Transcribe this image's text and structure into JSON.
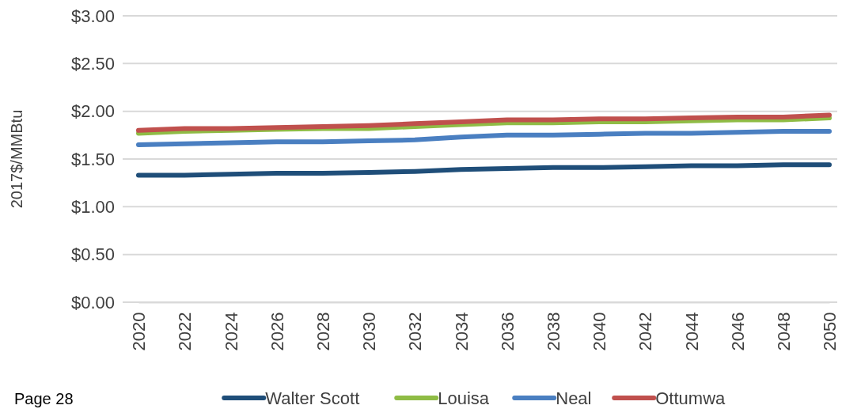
{
  "chart_data": {
    "type": "line",
    "ylabel": "2017$/MMBtu",
    "x": [
      2020,
      2022,
      2024,
      2026,
      2028,
      2030,
      2032,
      2034,
      2036,
      2038,
      2040,
      2042,
      2044,
      2046,
      2048,
      2050
    ],
    "series": [
      {
        "name": "Walter Scott",
        "color": "#1f4e79",
        "values": [
          1.33,
          1.33,
          1.34,
          1.35,
          1.35,
          1.36,
          1.37,
          1.39,
          1.4,
          1.41,
          1.41,
          1.42,
          1.43,
          1.43,
          1.44,
          1.44
        ]
      },
      {
        "name": "Louisa",
        "color": "#8fbc45",
        "values": [
          1.77,
          1.79,
          1.8,
          1.81,
          1.82,
          1.82,
          1.84,
          1.86,
          1.88,
          1.88,
          1.89,
          1.89,
          1.9,
          1.91,
          1.91,
          1.93
        ]
      },
      {
        "name": "Neal",
        "color": "#4a7fc1",
        "values": [
          1.65,
          1.66,
          1.67,
          1.68,
          1.68,
          1.69,
          1.7,
          1.73,
          1.75,
          1.75,
          1.76,
          1.77,
          1.77,
          1.78,
          1.79,
          1.79
        ]
      },
      {
        "name": "Ottumwa",
        "color": "#c0504d",
        "values": [
          1.8,
          1.82,
          1.82,
          1.83,
          1.84,
          1.85,
          1.87,
          1.89,
          1.91,
          1.91,
          1.92,
          1.92,
          1.93,
          1.94,
          1.94,
          1.96
        ]
      }
    ],
    "xlim": [
      2020,
      2050
    ],
    "xticks": [
      2020,
      2022,
      2024,
      2026,
      2028,
      2030,
      2032,
      2034,
      2036,
      2038,
      2040,
      2042,
      2044,
      2046,
      2048,
      2050
    ],
    "ylim": [
      0,
      3
    ],
    "yticks": [
      {
        "value": 0,
        "label": "$0.00"
      },
      {
        "value": 0.5,
        "label": "$0.50"
      },
      {
        "value": 1,
        "label": "$1.00"
      },
      {
        "value": 1.5,
        "label": "$1.50"
      },
      {
        "value": 2,
        "label": "$2.00"
      },
      {
        "value": 2.5,
        "label": "$2.50"
      },
      {
        "value": 3,
        "label": "$3.00"
      }
    ],
    "grid": "y",
    "legend": "bottom",
    "marker": "none",
    "line_style": "solid",
    "annotations": [
      "Page 28"
    ]
  }
}
